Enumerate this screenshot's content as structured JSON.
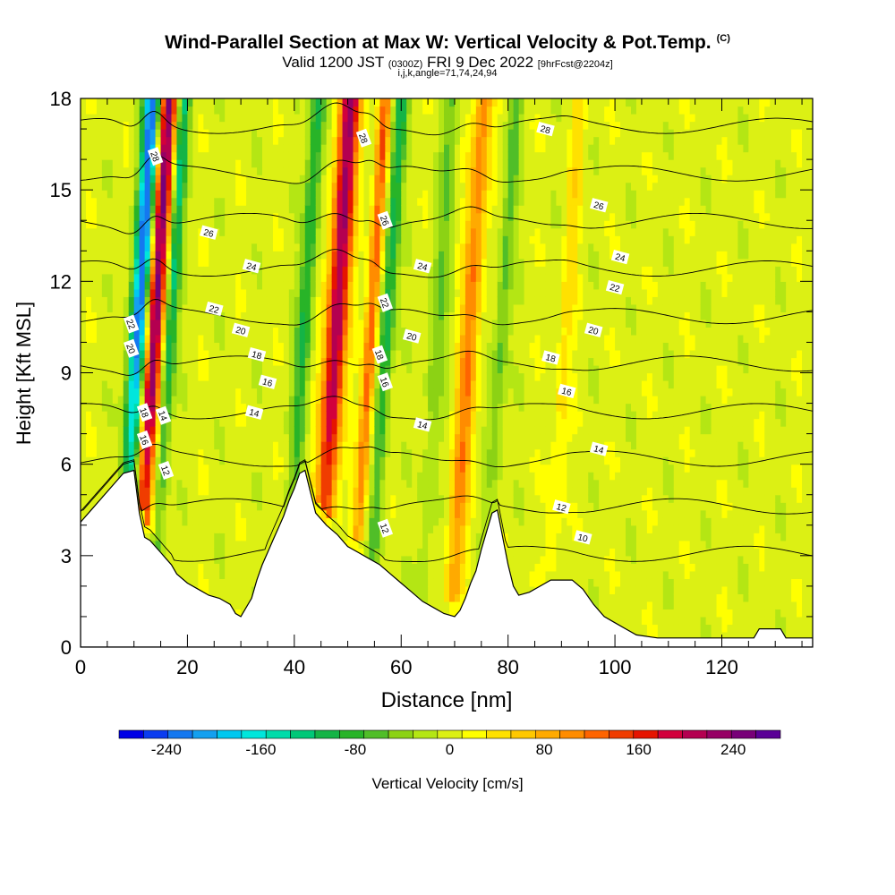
{
  "header": {
    "title": "Wind-Parallel Section at Max W: Vertical Velocity & Pot.Temp.",
    "copyright": "(C)",
    "subtitle_a": "Valid 1200 JST",
    "subtitle_b": "(0300Z)",
    "subtitle_c": "FRI 9 Dec 2022",
    "subtitle_d": "[9hrFcst@2204z]",
    "params": "i,j,k,angle=71,74,24,94"
  },
  "chart_data": {
    "type": "heatmap",
    "xlabel": "Distance [nm]",
    "ylabel": "Height [Kft MSL]",
    "xlim": [
      0,
      137
    ],
    "ylim": [
      0,
      18
    ],
    "x_ticks": [
      "0",
      "20",
      "40",
      "60",
      "80",
      "100",
      "120"
    ],
    "y_ticks": [
      "0",
      "3",
      "6",
      "9",
      "12",
      "15",
      "18"
    ],
    "colorbar": {
      "label": "Vertical Velocity [cm/s]",
      "tick_labels": [
        "-240",
        "-160",
        "-80",
        "0",
        "80",
        "160",
        "240"
      ],
      "range": [
        -280,
        280
      ],
      "colors": [
        "#0000e6",
        "#0a3cf0",
        "#1478f0",
        "#14a0f0",
        "#00c8f0",
        "#00e6dc",
        "#00dcaa",
        "#00c878",
        "#14b446",
        "#28b428",
        "#50be28",
        "#8cd214",
        "#b4e614",
        "#dcf014",
        "#ffff00",
        "#ffe100",
        "#ffc800",
        "#ffaa00",
        "#ff8c00",
        "#ff6400",
        "#f03c00",
        "#e61400",
        "#d2003c",
        "#b40050",
        "#960064",
        "#780078",
        "#5a0096"
      ]
    },
    "terrain_kft": [
      [
        0,
        4.1
      ],
      [
        2,
        4.5
      ],
      [
        4,
        4.9
      ],
      [
        6,
        5.3
      ],
      [
        8,
        5.7
      ],
      [
        10,
        5.8
      ],
      [
        11,
        4.4
      ],
      [
        12,
        3.6
      ],
      [
        13,
        3.5
      ],
      [
        14,
        3.3
      ],
      [
        15,
        3.1
      ],
      [
        16,
        2.9
      ],
      [
        17,
        2.7
      ],
      [
        18,
        2.4
      ],
      [
        20,
        2.1
      ],
      [
        22,
        1.9
      ],
      [
        24,
        1.7
      ],
      [
        26,
        1.6
      ],
      [
        28,
        1.4
      ],
      [
        29,
        1.1
      ],
      [
        30,
        1.0
      ],
      [
        31,
        1.3
      ],
      [
        32,
        1.6
      ],
      [
        33,
        2.2
      ],
      [
        34,
        2.7
      ],
      [
        35,
        3.1
      ],
      [
        36,
        3.5
      ],
      [
        37,
        3.9
      ],
      [
        38,
        4.3
      ],
      [
        39,
        4.8
      ],
      [
        40,
        5.2
      ],
      [
        41,
        5.7
      ],
      [
        42,
        5.8
      ],
      [
        43,
        5.1
      ],
      [
        44,
        4.4
      ],
      [
        46,
        4.0
      ],
      [
        48,
        3.7
      ],
      [
        50,
        3.3
      ],
      [
        52,
        3.1
      ],
      [
        54,
        2.9
      ],
      [
        56,
        2.7
      ],
      [
        58,
        2.4
      ],
      [
        60,
        2.1
      ],
      [
        62,
        1.8
      ],
      [
        64,
        1.5
      ],
      [
        66,
        1.3
      ],
      [
        68,
        1.1
      ],
      [
        70,
        1.0
      ],
      [
        71,
        1.2
      ],
      [
        72,
        1.6
      ],
      [
        73,
        2.1
      ],
      [
        74,
        2.5
      ],
      [
        75,
        3.2
      ],
      [
        76,
        3.8
      ],
      [
        77,
        4.4
      ],
      [
        78,
        4.5
      ],
      [
        79,
        3.6
      ],
      [
        80,
        2.7
      ],
      [
        81,
        2.0
      ],
      [
        82,
        1.7
      ],
      [
        84,
        1.8
      ],
      [
        86,
        2.0
      ],
      [
        88,
        2.2
      ],
      [
        92,
        2.2
      ],
      [
        94,
        1.9
      ],
      [
        96,
        1.4
      ],
      [
        98,
        1.0
      ],
      [
        100,
        0.8
      ],
      [
        102,
        0.6
      ],
      [
        104,
        0.4
      ],
      [
        108,
        0.3
      ],
      [
        126,
        0.3
      ],
      [
        127,
        0.6
      ],
      [
        131,
        0.6
      ],
      [
        132,
        0.3
      ],
      [
        137,
        0.3
      ]
    ],
    "updraft_bands": [
      {
        "x_center": 13.0,
        "half_width": 1.6,
        "peak": 240
      },
      {
        "x_center": 47.0,
        "half_width": 2.0,
        "peak": 220
      },
      {
        "x_center": 53.5,
        "half_width": 1.2,
        "peak": 130
      },
      {
        "x_center": 72.0,
        "half_width": 1.8,
        "peak": 110
      },
      {
        "x_center": 90.0,
        "half_width": 1.5,
        "peak": 40
      }
    ],
    "downdraft_bands": [
      {
        "x_center": 10.0,
        "half_width": 1.6,
        "peak": -240
      },
      {
        "x_center": 16.0,
        "half_width": 1.2,
        "peak": -120
      },
      {
        "x_center": 41.0,
        "half_width": 1.4,
        "peak": -100
      },
      {
        "x_center": 56.5,
        "half_width": 1.3,
        "peak": -110
      },
      {
        "x_center": 66.0,
        "half_width": 1.6,
        "peak": -50
      },
      {
        "x_center": 78.0,
        "half_width": 1.4,
        "peak": -60
      }
    ],
    "contour_interval": 2,
    "contour_labels": [
      {
        "text": "28",
        "x": 14,
        "y": 16.1
      },
      {
        "text": "28",
        "x": 53,
        "y": 16.7
      },
      {
        "text": "28",
        "x": 87,
        "y": 17.0
      },
      {
        "text": "26",
        "x": 57,
        "y": 14.0
      },
      {
        "text": "26",
        "x": 24,
        "y": 13.6
      },
      {
        "text": "26",
        "x": 97,
        "y": 14.5
      },
      {
        "text": "24",
        "x": 32,
        "y": 12.5
      },
      {
        "text": "24",
        "x": 64,
        "y": 12.5
      },
      {
        "text": "24",
        "x": 101,
        "y": 12.8
      },
      {
        "text": "22",
        "x": 25,
        "y": 11.1
      },
      {
        "text": "22",
        "x": 100,
        "y": 11.8
      },
      {
        "text": "22",
        "x": 57,
        "y": 11.3
      },
      {
        "text": "22",
        "x": 9.5,
        "y": 10.6
      },
      {
        "text": "20",
        "x": 9.5,
        "y": 9.8
      },
      {
        "text": "20",
        "x": 30,
        "y": 10.4
      },
      {
        "text": "20",
        "x": 62,
        "y": 10.2
      },
      {
        "text": "20",
        "x": 96,
        "y": 10.4
      },
      {
        "text": "18",
        "x": 33,
        "y": 9.6
      },
      {
        "text": "18",
        "x": 56,
        "y": 9.6
      },
      {
        "text": "18",
        "x": 88,
        "y": 9.5
      },
      {
        "text": "18",
        "x": 12,
        "y": 7.7
      },
      {
        "text": "16",
        "x": 35,
        "y": 8.7
      },
      {
        "text": "16",
        "x": 57,
        "y": 8.7
      },
      {
        "text": "16",
        "x": 91,
        "y": 8.4
      },
      {
        "text": "16",
        "x": 12,
        "y": 6.8
      },
      {
        "text": "14",
        "x": 32.5,
        "y": 7.7
      },
      {
        "text": "14",
        "x": 64,
        "y": 7.3
      },
      {
        "text": "14",
        "x": 97,
        "y": 6.5
      },
      {
        "text": "14",
        "x": 15.5,
        "y": 7.6
      },
      {
        "text": "12",
        "x": 16,
        "y": 5.8
      },
      {
        "text": "12",
        "x": 57,
        "y": 3.9
      },
      {
        "text": "12",
        "x": 90,
        "y": 4.6
      },
      {
        "text": "10",
        "x": 94,
        "y": 3.6
      }
    ]
  }
}
